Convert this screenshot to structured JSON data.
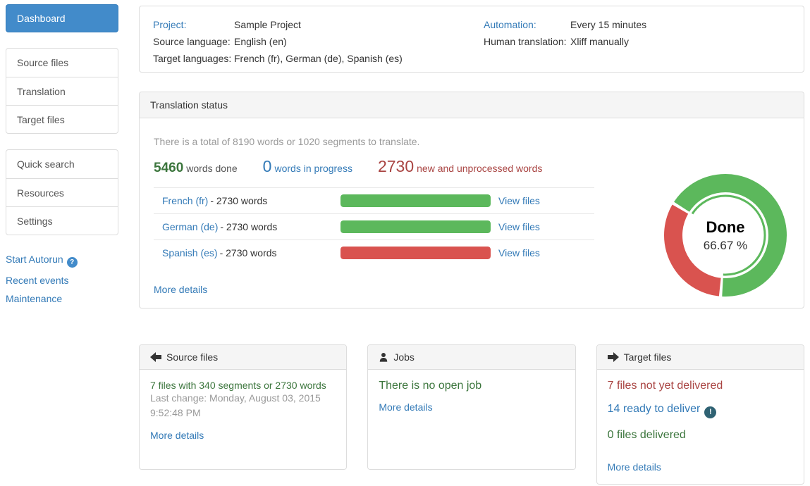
{
  "colors": {
    "link_blue": "#337ab7",
    "primary_button_blue": "#428bca",
    "success_green": "#5cb85c",
    "danger_red": "#d9534f",
    "text_green": "#3c763d",
    "text_red": "#a94442",
    "muted_gray": "#999999",
    "panel_header_bg": "#f5f5f5",
    "alert_badge": "#2f6273"
  },
  "icons": {
    "help": "?",
    "ready_alert": "!",
    "source_files_header": "left-arrow-icon",
    "jobs_header": "person-icon",
    "target_files_header": "right-arrow-icon"
  },
  "sidebar": {
    "dashboard": "Dashboard",
    "nav1": [
      {
        "label": "Source files"
      },
      {
        "label": "Translation"
      },
      {
        "label": "Target files"
      }
    ],
    "nav2": [
      {
        "label": "Quick search"
      },
      {
        "label": "Resources"
      },
      {
        "label": "Settings"
      }
    ],
    "links": {
      "start_autorun": "Start Autorun",
      "recent_events": "Recent events",
      "maintenance": "Maintenance"
    }
  },
  "project_info": {
    "project_label": "Project:",
    "project_value": "Sample Project",
    "source_language_label": "Source language:",
    "source_language_value": "English (en)",
    "target_languages_label": "Target languages:",
    "target_languages_value": "French (fr), German (de), Spanish (es)",
    "automation_label": "Automation:",
    "automation_value": "Every 15 minutes",
    "human_translation_label": "Human translation:",
    "human_translation_value": "Xliff manually"
  },
  "translation_status": {
    "title": "Translation status",
    "summary": "There is a total of 8190 words or 1020 segments to translate.",
    "stat_done_number": "5460",
    "stat_done_label": "words done",
    "stat_progress_number": "0",
    "stat_progress_label": "words in progress",
    "stat_new_number": "2730",
    "stat_new_label": "new and unprocessed words",
    "languages": [
      {
        "name": "French (fr)",
        "words": "- 2730 words",
        "progress_percent": 100,
        "bar_color": "#5cb85c",
        "link": "View files"
      },
      {
        "name": "German (de)",
        "words": "- 2730 words",
        "progress_percent": 100,
        "bar_color": "#5cb85c",
        "link": "View files"
      },
      {
        "name": "Spanish (es)",
        "words": "- 2730 words",
        "progress_percent": 100,
        "bar_color": "#d9534f",
        "link": "View files"
      }
    ],
    "more_details": "More details",
    "donut_label": "Done",
    "donut_percent_text": "66.67 %"
  },
  "chart_data": {
    "type": "pie",
    "subtype": "donut",
    "center_label": "Done",
    "center_value": "66.67 %",
    "slices": [
      {
        "name": "done",
        "value": 66.67,
        "color": "#5cb85c"
      },
      {
        "name": "not done",
        "value": 33.33,
        "color": "#d9534f"
      }
    ],
    "related_bars": {
      "type": "bar",
      "categories": [
        "French (fr)",
        "German (de)",
        "Spanish (es)"
      ],
      "values": [
        2730,
        2730,
        2730
      ],
      "bar_fill_percent": [
        100,
        100,
        100
      ],
      "bar_status": [
        "done",
        "done",
        "unprocessed"
      ]
    }
  },
  "cards": {
    "source_files": {
      "title": "Source files",
      "summary": "7 files with 340 segments or 2730 words",
      "last_change": "Last change: Monday, August 03, 2015 9:52:48 PM",
      "more_details": "More details"
    },
    "jobs": {
      "title": "Jobs",
      "status": "There is no open job",
      "more_details": "More details"
    },
    "target_files": {
      "title": "Target files",
      "not_delivered": "7 files not yet delivered",
      "ready": "14 ready to deliver",
      "delivered": "0 files delivered",
      "more_details": "More details"
    }
  }
}
